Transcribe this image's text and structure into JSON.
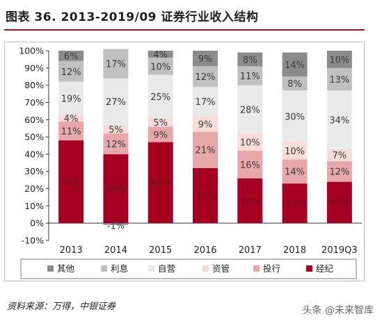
{
  "header": {
    "title": "图表 36. 2013-2019/09 证券行业收入结构"
  },
  "footer": {
    "source": "资料来源：万得，中银证券",
    "watermark": "头条 @未来智库"
  },
  "chart_data": {
    "type": "bar",
    "stacked": true,
    "categories": [
      "2013",
      "2014",
      "2015",
      "2016",
      "2017",
      "2018",
      "2019Q3"
    ],
    "y_ticks": [
      "-10%",
      "0%",
      "10%",
      "20%",
      "30%",
      "40%",
      "50%",
      "60%",
      "70%",
      "80%",
      "90%",
      "100%"
    ],
    "ylim": [
      -10,
      100
    ],
    "grid": false,
    "legend_position": "bottom",
    "series": [
      {
        "name": "经纪",
        "color": "#a50021",
        "values": [
          48,
          40,
          47,
          32,
          26,
          23,
          24
        ],
        "labels": [
          "48%",
          "40%",
          "47%",
          "32%",
          "26%",
          "23%",
          "24%"
        ]
      },
      {
        "name": "投行",
        "color": "#e8a8ab",
        "values": [
          11,
          12,
          9,
          21,
          16,
          14,
          12
        ],
        "labels": [
          "11%",
          "12%",
          "9%",
          "21%",
          "16%",
          "14%",
          "12%"
        ]
      },
      {
        "name": "资管",
        "color": "#f8dcd9",
        "values": [
          4,
          5,
          5,
          9,
          10,
          10,
          7
        ],
        "labels": [
          "4%",
          "5%",
          "5%",
          "9%",
          "10%",
          "10%",
          "7%"
        ]
      },
      {
        "name": "自营",
        "color": "#e9e9e9",
        "values": [
          19,
          27,
          25,
          17,
          28,
          30,
          34
        ],
        "labels": [
          "19%",
          "27%",
          "25%",
          "17%",
          "28%",
          "30%",
          "34%"
        ]
      },
      {
        "name": "利息",
        "color": "#c0c0c0",
        "values": [
          12,
          17,
          10,
          12,
          11,
          8,
          13
        ],
        "labels": [
          "12%",
          "17%",
          "10%",
          "12%",
          "11%",
          "8%",
          "13%"
        ]
      },
      {
        "name": "其他",
        "color": "#8c8c8c",
        "values": [
          6,
          0,
          4,
          9,
          8,
          14,
          10
        ],
        "labels": [
          "6%",
          "",
          "4%",
          "9%",
          "8%",
          "14%",
          "10%"
        ]
      }
    ],
    "negative_other": {
      "category": "2014",
      "value": -1,
      "label": "-1%"
    },
    "legend_order": [
      "其他",
      "利息",
      "自营",
      "资管",
      "投行",
      "经纪"
    ]
  }
}
